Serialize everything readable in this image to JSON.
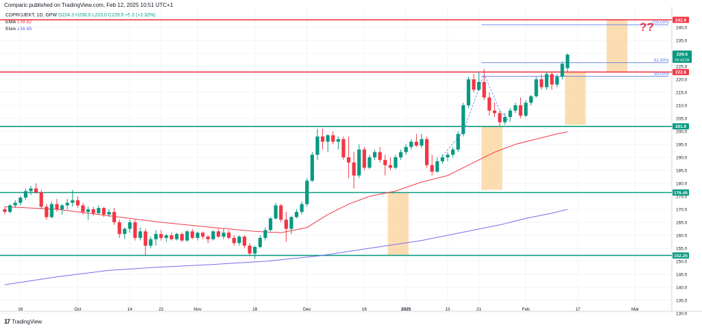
{
  "header": {
    "published_note": "Comparic published on TradingView.com, Feb 12, 2025 10:51 UTC+1"
  },
  "legend": {
    "symbol": "CDPROJEKT, 1D, GPW",
    "ohlc": "O224.3 H230.0 L223.0 C229.5 +5.2 (+2.32%)",
    "ema1_label": "EMA",
    "ema1_value": "199.82",
    "ema1_color": "#f23645",
    "ema2_label": "EMA",
    "ema2_value": "169.95",
    "ema2_color": "#7b68ee"
  },
  "logo": {
    "mark": "17",
    "text": "TradingView"
  },
  "annotation": "??",
  "colors": {
    "up": "#089981",
    "down": "#f23645",
    "level_green": "#089981",
    "level_red": "#f23645",
    "zone": "#fbd7a4",
    "fib": "#5b7be8"
  },
  "chart_data": {
    "type": "candlestick",
    "y_ticks": [
      130,
      135,
      140,
      145,
      150,
      155,
      160,
      165,
      170,
      175,
      180,
      185,
      190,
      195,
      200,
      205,
      210,
      215,
      220,
      225,
      230,
      235,
      240
    ],
    "x_ticks": [
      {
        "label": "16",
        "i": 3
      },
      {
        "label": "Oct",
        "i": 14
      },
      {
        "label": "14",
        "i": 24
      },
      {
        "label": "22",
        "i": 30
      },
      {
        "label": "Nov",
        "i": 37
      },
      {
        "label": "18",
        "i": 48
      },
      {
        "label": "Dec",
        "i": 58
      },
      {
        "label": "16",
        "i": 69
      },
      {
        "label": "2025",
        "i": 77,
        "bold": true
      },
      {
        "label": "13",
        "i": 85
      },
      {
        "label": "21",
        "i": 91
      },
      {
        "label": "Feb",
        "i": 100
      },
      {
        "label": "17",
        "i": 110
      },
      {
        "label": "Mar",
        "i": 121
      }
    ],
    "levels": [
      {
        "value": 242.9,
        "label": "242.9",
        "color": "#f23645"
      },
      {
        "value": 222.8,
        "label": "222.8",
        "color": "#f23645"
      },
      {
        "value": 201.9,
        "label": "201.9",
        "color": "#089981"
      },
      {
        "value": 176.45,
        "label": "176.45",
        "color": "#089981"
      },
      {
        "value": 152.25,
        "label": "152.25",
        "color": "#089981"
      }
    ],
    "last_price": {
      "value": 229.5,
      "label": "229.5",
      "countdown": "06:43:09"
    },
    "fib_levels": [
      {
        "value": 241.0,
        "label": "100.00%"
      },
      {
        "value": 226.4,
        "label": "61.80%"
      },
      {
        "value": 221.2,
        "label": "50.00%"
      }
    ],
    "zones": [
      {
        "i0": 73.5,
        "i1": 77.5,
        "y0": 152.5,
        "y1": 176.5
      },
      {
        "i0": 91.5,
        "i1": 95.5,
        "y0": 177.5,
        "y1": 201.9
      },
      {
        "i0": 107.5,
        "i1": 111.5,
        "y0": 202.5,
        "y1": 223.0
      },
      {
        "i0": 115.5,
        "i1": 119.5,
        "y0": 223.0,
        "y1": 242.9
      }
    ],
    "candles": [
      [
        170.0,
        171.0,
        168.0,
        169.0
      ],
      [
        169.0,
        172.0,
        168.5,
        171.5
      ],
      [
        171.5,
        173.5,
        170.5,
        172.5
      ],
      [
        172.5,
        175.0,
        171.5,
        174.5
      ],
      [
        174.5,
        178.0,
        173.5,
        177.0
      ],
      [
        177.0,
        179.0,
        175.5,
        178.0
      ],
      [
        178.0,
        180.0,
        176.0,
        176.5
      ],
      [
        176.5,
        177.5,
        170.0,
        171.0
      ],
      [
        171.0,
        172.0,
        166.0,
        167.0
      ],
      [
        167.0,
        173.0,
        166.5,
        172.0
      ],
      [
        172.0,
        174.0,
        169.0,
        170.0
      ],
      [
        170.0,
        172.0,
        168.0,
        171.5
      ],
      [
        171.5,
        174.0,
        170.0,
        172.5
      ],
      [
        172.5,
        177.5,
        171.0,
        173.5
      ],
      [
        173.5,
        175.0,
        170.5,
        171.5
      ],
      [
        171.5,
        172.5,
        168.0,
        169.0
      ],
      [
        169.0,
        171.0,
        166.0,
        170.0
      ],
      [
        170.0,
        171.0,
        167.5,
        168.5
      ],
      [
        168.5,
        171.5,
        168.0,
        170.5
      ],
      [
        170.5,
        171.0,
        167.0,
        168.0
      ],
      [
        168.0,
        170.0,
        167.0,
        169.0
      ],
      [
        169.0,
        170.5,
        164.0,
        165.0
      ],
      [
        165.0,
        166.0,
        159.0,
        160.5
      ],
      [
        160.5,
        163.0,
        158.5,
        162.5
      ],
      [
        162.5,
        166.0,
        161.0,
        165.0
      ],
      [
        165.0,
        166.0,
        158.0,
        159.0
      ],
      [
        159.0,
        163.0,
        158.0,
        161.5
      ],
      [
        161.5,
        162.5,
        152.5,
        156.0
      ],
      [
        156.0,
        159.5,
        155.0,
        158.5
      ],
      [
        158.5,
        162.0,
        156.0,
        160.5
      ],
      [
        160.5,
        162.0,
        158.0,
        159.0
      ],
      [
        159.0,
        160.5,
        157.5,
        160.0
      ],
      [
        160.0,
        161.0,
        158.0,
        158.5
      ],
      [
        158.5,
        161.0,
        158.0,
        160.5
      ],
      [
        160.5,
        161.0,
        157.5,
        158.0
      ],
      [
        158.0,
        162.0,
        157.5,
        161.5
      ],
      [
        161.5,
        162.5,
        158.5,
        159.0
      ],
      [
        159.0,
        161.5,
        158.0,
        161.0
      ],
      [
        161.0,
        161.5,
        158.5,
        159.5
      ],
      [
        159.5,
        160.0,
        157.0,
        158.5
      ],
      [
        158.5,
        162.0,
        158.0,
        161.5
      ],
      [
        161.5,
        162.5,
        159.0,
        159.5
      ],
      [
        159.5,
        162.5,
        158.5,
        161.0
      ],
      [
        161.0,
        162.0,
        158.5,
        159.0
      ],
      [
        159.0,
        160.0,
        156.0,
        157.0
      ],
      [
        157.0,
        160.0,
        156.0,
        159.5
      ],
      [
        159.5,
        160.0,
        155.0,
        156.0
      ],
      [
        156.0,
        157.0,
        152.0,
        153.0
      ],
      [
        153.0,
        156.0,
        151.0,
        155.5
      ],
      [
        155.5,
        160.0,
        155.0,
        159.0
      ],
      [
        159.0,
        163.0,
        158.0,
        162.0
      ],
      [
        162.0,
        167.0,
        161.5,
        166.5
      ],
      [
        166.5,
        172.5,
        166.0,
        171.5
      ],
      [
        171.5,
        172.0,
        165.0,
        166.0
      ],
      [
        166.0,
        169.0,
        157.5,
        162.5
      ],
      [
        162.5,
        167.5,
        160.5,
        167.0
      ],
      [
        167.0,
        170.0,
        166.5,
        169.0
      ],
      [
        169.0,
        173.0,
        168.0,
        172.0
      ],
      [
        172.0,
        182.0,
        171.0,
        181.0
      ],
      [
        181.0,
        192.0,
        180.5,
        191.0
      ],
      [
        191.0,
        201.0,
        189.0,
        198.0
      ],
      [
        198.0,
        201.0,
        193.0,
        196.0
      ],
      [
        196.0,
        199.0,
        192.0,
        198.5
      ],
      [
        198.5,
        200.0,
        195.0,
        196.0
      ],
      [
        196.0,
        198.0,
        193.0,
        197.0
      ],
      [
        197.0,
        198.0,
        189.0,
        190.0
      ],
      [
        190.0,
        198.0,
        182.0,
        188.0
      ],
      [
        188.0,
        192.0,
        178.0,
        183.0
      ],
      [
        183.0,
        195.0,
        182.0,
        193.0
      ],
      [
        193.0,
        194.0,
        185.0,
        186.0
      ],
      [
        186.0,
        191.0,
        185.5,
        190.0
      ],
      [
        190.0,
        193.0,
        189.0,
        192.0
      ],
      [
        192.0,
        194.0,
        188.0,
        189.0
      ],
      [
        189.0,
        191.0,
        183.0,
        187.0
      ],
      [
        187.0,
        190.0,
        185.0,
        186.0
      ],
      [
        186.0,
        191.0,
        185.5,
        190.0
      ],
      [
        190.0,
        193.0,
        189.0,
        192.0
      ],
      [
        192.0,
        195.0,
        191.0,
        194.0
      ],
      [
        194.0,
        197.0,
        193.0,
        196.0
      ],
      [
        196.0,
        199.0,
        194.0,
        194.5
      ],
      [
        194.5,
        199.0,
        193.5,
        197.0
      ],
      [
        197.0,
        198.0,
        186.0,
        187.0
      ],
      [
        187.0,
        191.0,
        183.0,
        184.5
      ],
      [
        184.5,
        190.0,
        184.0,
        188.5
      ],
      [
        188.5,
        191.0,
        187.5,
        190.0
      ],
      [
        190.0,
        192.0,
        188.5,
        191.0
      ],
      [
        191.0,
        194.0,
        190.0,
        193.0
      ],
      [
        193.0,
        200.0,
        192.0,
        199.0
      ],
      [
        199.0,
        211.0,
        198.0,
        210.0
      ],
      [
        210.0,
        221.0,
        209.0,
        220.0
      ],
      [
        220.0,
        222.0,
        215.0,
        216.0
      ],
      [
        216.0,
        223.0,
        215.5,
        219.0
      ],
      [
        219.0,
        224.0,
        212.0,
        213.0
      ],
      [
        213.0,
        215.0,
        206.0,
        208.0
      ],
      [
        208.0,
        211.0,
        205.5,
        207.0
      ],
      [
        207.0,
        208.0,
        202.0,
        203.5
      ],
      [
        203.5,
        207.0,
        202.5,
        205.5
      ],
      [
        205.5,
        209.0,
        204.0,
        208.0
      ],
      [
        208.0,
        211.0,
        207.0,
        210.0
      ],
      [
        210.0,
        213.0,
        205.0,
        206.0
      ],
      [
        206.0,
        212.0,
        205.5,
        211.0
      ],
      [
        211.0,
        214.0,
        210.0,
        213.5
      ],
      [
        213.5,
        221.0,
        213.0,
        220.0
      ],
      [
        220.0,
        222.0,
        216.0,
        217.0
      ],
      [
        217.0,
        223.0,
        216.0,
        222.0
      ],
      [
        222.0,
        223.0,
        216.0,
        218.0
      ],
      [
        218.0,
        222.0,
        217.0,
        221.0
      ],
      [
        221.0,
        227.0,
        220.0,
        226.0
      ],
      [
        224.3,
        230.0,
        223.0,
        229.5
      ]
    ],
    "ema1_points": [
      [
        0,
        171.0
      ],
      [
        10,
        170.0
      ],
      [
        20,
        167.5
      ],
      [
        30,
        165.0
      ],
      [
        40,
        163.0
      ],
      [
        48,
        161.5
      ],
      [
        53,
        161.0
      ],
      [
        58,
        163.0
      ],
      [
        62,
        168.0
      ],
      [
        66,
        172.0
      ],
      [
        70,
        175.0
      ],
      [
        75,
        177.0
      ],
      [
        80,
        180.5
      ],
      [
        85,
        183.0
      ],
      [
        90,
        188.0
      ],
      [
        94,
        192.0
      ],
      [
        98,
        195.0
      ],
      [
        102,
        197.0
      ],
      [
        106,
        199.0
      ],
      [
        108,
        199.82
      ]
    ],
    "ema2_points": [
      [
        0,
        141.0
      ],
      [
        10,
        144.0
      ],
      [
        20,
        146.5
      ],
      [
        30,
        147.8
      ],
      [
        40,
        148.8
      ],
      [
        50,
        150.0
      ],
      [
        60,
        152.0
      ],
      [
        70,
        155.0
      ],
      [
        80,
        158.0
      ],
      [
        90,
        162.0
      ],
      [
        95,
        164.0
      ],
      [
        100,
        166.5
      ],
      [
        105,
        168.5
      ],
      [
        108,
        169.95
      ]
    ],
    "dashed_path": [
      [
        84,
        190.5
      ],
      [
        88,
        200.0
      ],
      [
        92,
        222.0
      ],
      [
        95,
        208.0
      ],
      [
        97,
        203.5
      ]
    ],
    "fib_x_range": [
      91.5,
      119.5
    ]
  }
}
